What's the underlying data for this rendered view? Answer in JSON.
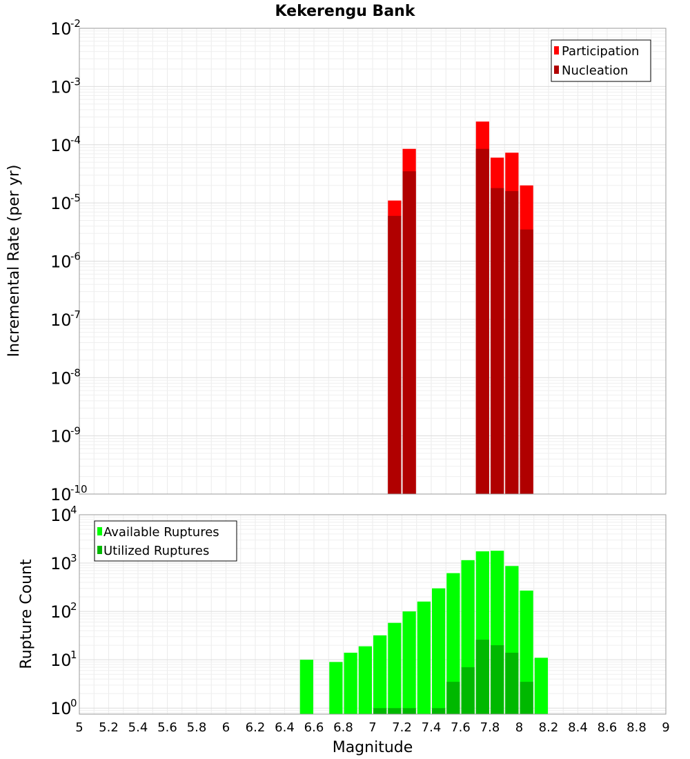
{
  "chart_data": {
    "type": "bar",
    "title": "Kekerengu Bank",
    "xlabel": "Magnitude",
    "xlim": [
      5,
      9
    ],
    "x_ticks": [
      "5",
      "5.2",
      "5.4",
      "5.6",
      "5.8",
      "6",
      "6.2",
      "6.4",
      "6.6",
      "6.8",
      "7",
      "7.2",
      "7.4",
      "7.6",
      "7.8",
      "8",
      "8.2",
      "8.4",
      "8.6",
      "8.8",
      "9"
    ],
    "bin_width": 0.1,
    "panels": [
      {
        "name": "rate",
        "ylabel": "Incremental Rate (per yr)",
        "yscale": "log",
        "ylim": [
          1e-10,
          0.01
        ],
        "y_ticks": [
          {
            "base": "10",
            "exp": "-10"
          },
          {
            "base": "10",
            "exp": "-9"
          },
          {
            "base": "10",
            "exp": "-8"
          },
          {
            "base": "10",
            "exp": "-7"
          },
          {
            "base": "10",
            "exp": "-6"
          },
          {
            "base": "10",
            "exp": "-5"
          },
          {
            "base": "10",
            "exp": "-4"
          },
          {
            "base": "10",
            "exp": "-3"
          },
          {
            "base": "10",
            "exp": "-2"
          }
        ],
        "legend": {
          "position": "top-right"
        },
        "series": [
          {
            "name": "Participation",
            "color": "#ff0000",
            "x": [
              7.15,
              7.25,
              7.75,
              7.85,
              7.95,
              8.05
            ],
            "values": [
              1.1e-05,
              8.5e-05,
              0.00025,
              6e-05,
              7.3e-05,
              2e-05
            ]
          },
          {
            "name": "Nucleation",
            "color": "#b00000",
            "x": [
              7.15,
              7.25,
              7.75,
              7.85,
              7.95,
              8.05
            ],
            "values": [
              6e-06,
              3.5e-05,
              8.5e-05,
              1.8e-05,
              1.6e-05,
              3.5e-06
            ]
          }
        ]
      },
      {
        "name": "count",
        "ylabel": "Rupture Count",
        "yscale": "log",
        "ylim": [
          0.75,
          10000
        ],
        "y_ticks": [
          {
            "base": "10",
            "exp": "0"
          },
          {
            "base": "10",
            "exp": "1"
          },
          {
            "base": "10",
            "exp": "2"
          },
          {
            "base": "10",
            "exp": "3"
          },
          {
            "base": "10",
            "exp": "4"
          }
        ],
        "legend": {
          "position": "top-left"
        },
        "series": [
          {
            "name": "Available Ruptures",
            "color": "#00ff00",
            "x": [
              6.55,
              6.75,
              6.85,
              6.95,
              7.05,
              7.15,
              7.25,
              7.35,
              7.45,
              7.55,
              7.65,
              7.75,
              7.85,
              7.95,
              8.05,
              8.15
            ],
            "values": [
              10,
              9,
              14,
              19,
              32,
              58,
              100,
              160,
              300,
              620,
              1150,
              1750,
              1800,
              870,
              270,
              11
            ]
          },
          {
            "name": "Utilized Ruptures",
            "color": "#00b800",
            "x": [
              7.05,
              7.15,
              7.25,
              7.45,
              7.55,
              7.65,
              7.75,
              7.85,
              7.95,
              8.05
            ],
            "values": [
              1,
              1,
              1,
              1,
              3.5,
              7,
              26,
              20,
              14,
              3.5
            ]
          }
        ]
      }
    ]
  }
}
